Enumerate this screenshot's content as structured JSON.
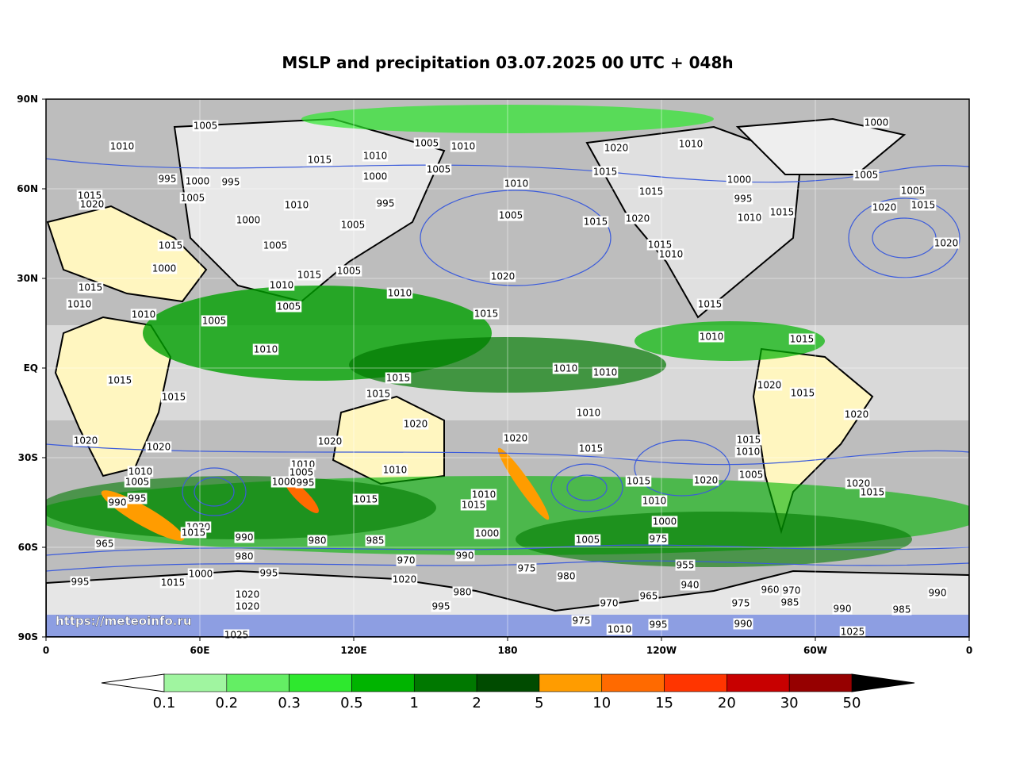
{
  "title": "MSLP and precipitation 03.07.2025 00 UTC + 048h",
  "map": {
    "lat_labels": [
      "90N",
      "60N",
      "30N",
      "EQ",
      "30S",
      "60S",
      "90S"
    ],
    "lon_labels": [
      "0",
      "60E",
      "120E",
      "180",
      "120W",
      "60W",
      "0"
    ],
    "watermark": "https://meteoinfo.ru",
    "isobar_labels": [
      1005,
      1010,
      995,
      1000,
      995,
      1005,
      1015,
      1020,
      1000,
      1010,
      1015,
      1010,
      1005,
      1010,
      1000,
      1005,
      995,
      1005,
      1010,
      1005,
      1020,
      1015,
      1015,
      1015,
      1020,
      1010,
      1000,
      995,
      1015,
      1010,
      1000,
      1005,
      1005,
      1020,
      1015,
      1020,
      1015,
      1000,
      1015,
      1010,
      1005,
      1015,
      1005,
      1010,
      1005,
      1020,
      1010,
      1015,
      1015,
      1010,
      1015,
      1010,
      1015,
      1010,
      1005,
      1010,
      1010,
      1010,
      1015,
      1015,
      1015,
      1015,
      1020,
      1015,
      1010,
      1020,
      1020,
      1020,
      1020,
      1020,
      1020,
      1015,
      1015,
      1010,
      1010,
      1005,
      995,
      990,
      965,
      1010,
      1005,
      1000,
      995,
      1010,
      1015,
      1010,
      1015,
      1015,
      1020,
      1005,
      1020,
      1015,
      1010,
      1000,
      975,
      1020,
      1015,
      990,
      980,
      980,
      985,
      1000,
      1005,
      970,
      990,
      975,
      980,
      1020,
      1000,
      995,
      995,
      1015,
      1020,
      1020,
      995,
      980,
      970,
      965,
      955,
      940,
      960,
      970,
      985,
      975,
      990,
      985,
      990,
      990,
      1010,
      1025,
      995,
      975,
      1025
    ]
  },
  "colorbar": {
    "labels": [
      0.1,
      0.2,
      0.3,
      0.5,
      1,
      2,
      5,
      10,
      15,
      20,
      30,
      50
    ],
    "colors": [
      "#a0f5a0",
      "#64ee64",
      "#2ee82e",
      "#00b400",
      "#007800",
      "#004b00",
      "#ff9c00",
      "#ff6a00",
      "#ff3500",
      "#c80000",
      "#960000"
    ],
    "under_color": "#ffffff",
    "over_color": "#000000"
  }
}
